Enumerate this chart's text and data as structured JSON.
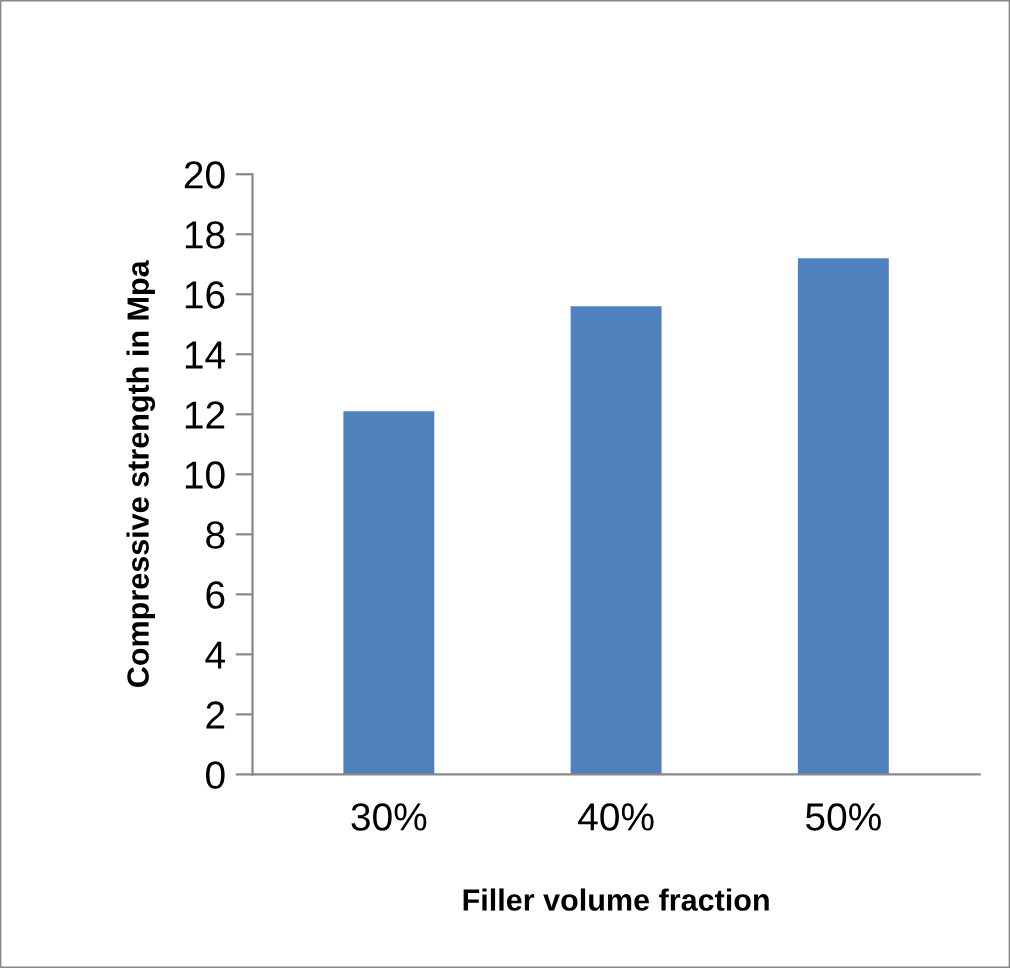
{
  "chart_data": {
    "type": "bar",
    "xlabel": "Filler volume fraction",
    "ylabel": "Compressive strength in Mpa",
    "categories": [
      "30%",
      "40%",
      "50%"
    ],
    "values": [
      12.1,
      15.6,
      17.2
    ],
    "color": "#4f81bd",
    "ylim": [
      0,
      20
    ],
    "yticks": [
      0,
      2,
      4,
      6,
      8,
      10,
      12,
      14,
      16,
      18,
      20
    ],
    "grid": false,
    "legend": false
  }
}
